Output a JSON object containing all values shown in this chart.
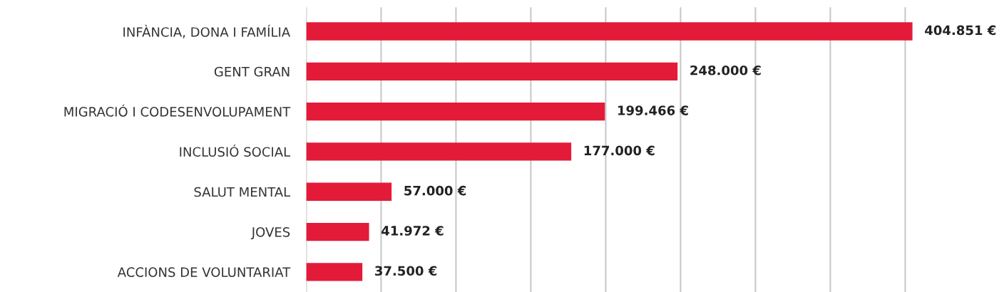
{
  "chart_data": {
    "type": "bar",
    "orientation": "horizontal",
    "categories": [
      "INFÀNCIA, DONA I FAMÍLIA",
      "GENT GRAN",
      "MIGRACIÓ I CODESENVOLUPAMENT",
      "INCLUSIÓ SOCIAL",
      "SALUT MENTAL",
      "JOVES",
      "ACCIONS DE VOLUNTARIAT"
    ],
    "values": [
      404851,
      248000,
      199466,
      177000,
      57000,
      41972,
      37500
    ],
    "value_labels": [
      "404.851 €",
      "248.000 €",
      "199.466 €",
      "177.000 €",
      "57.000 €",
      "41.972 €",
      "37.500 €"
    ],
    "color": "#e31b38",
    "xticks": [
      {
        "value": 0,
        "label": null
      },
      {
        "value": 50000,
        "label": null
      },
      {
        "value": 100000,
        "label": null
      },
      {
        "value": 150000,
        "label": null
      },
      {
        "value": 200000,
        "label": null
      },
      {
        "value": 250000,
        "label": null
      },
      {
        "value": 300000,
        "label": null
      },
      {
        "value": 350000,
        "label": null
      },
      {
        "value": 400000,
        "label": null
      }
    ],
    "tick_labels": "y",
    "grid": "x"
  }
}
